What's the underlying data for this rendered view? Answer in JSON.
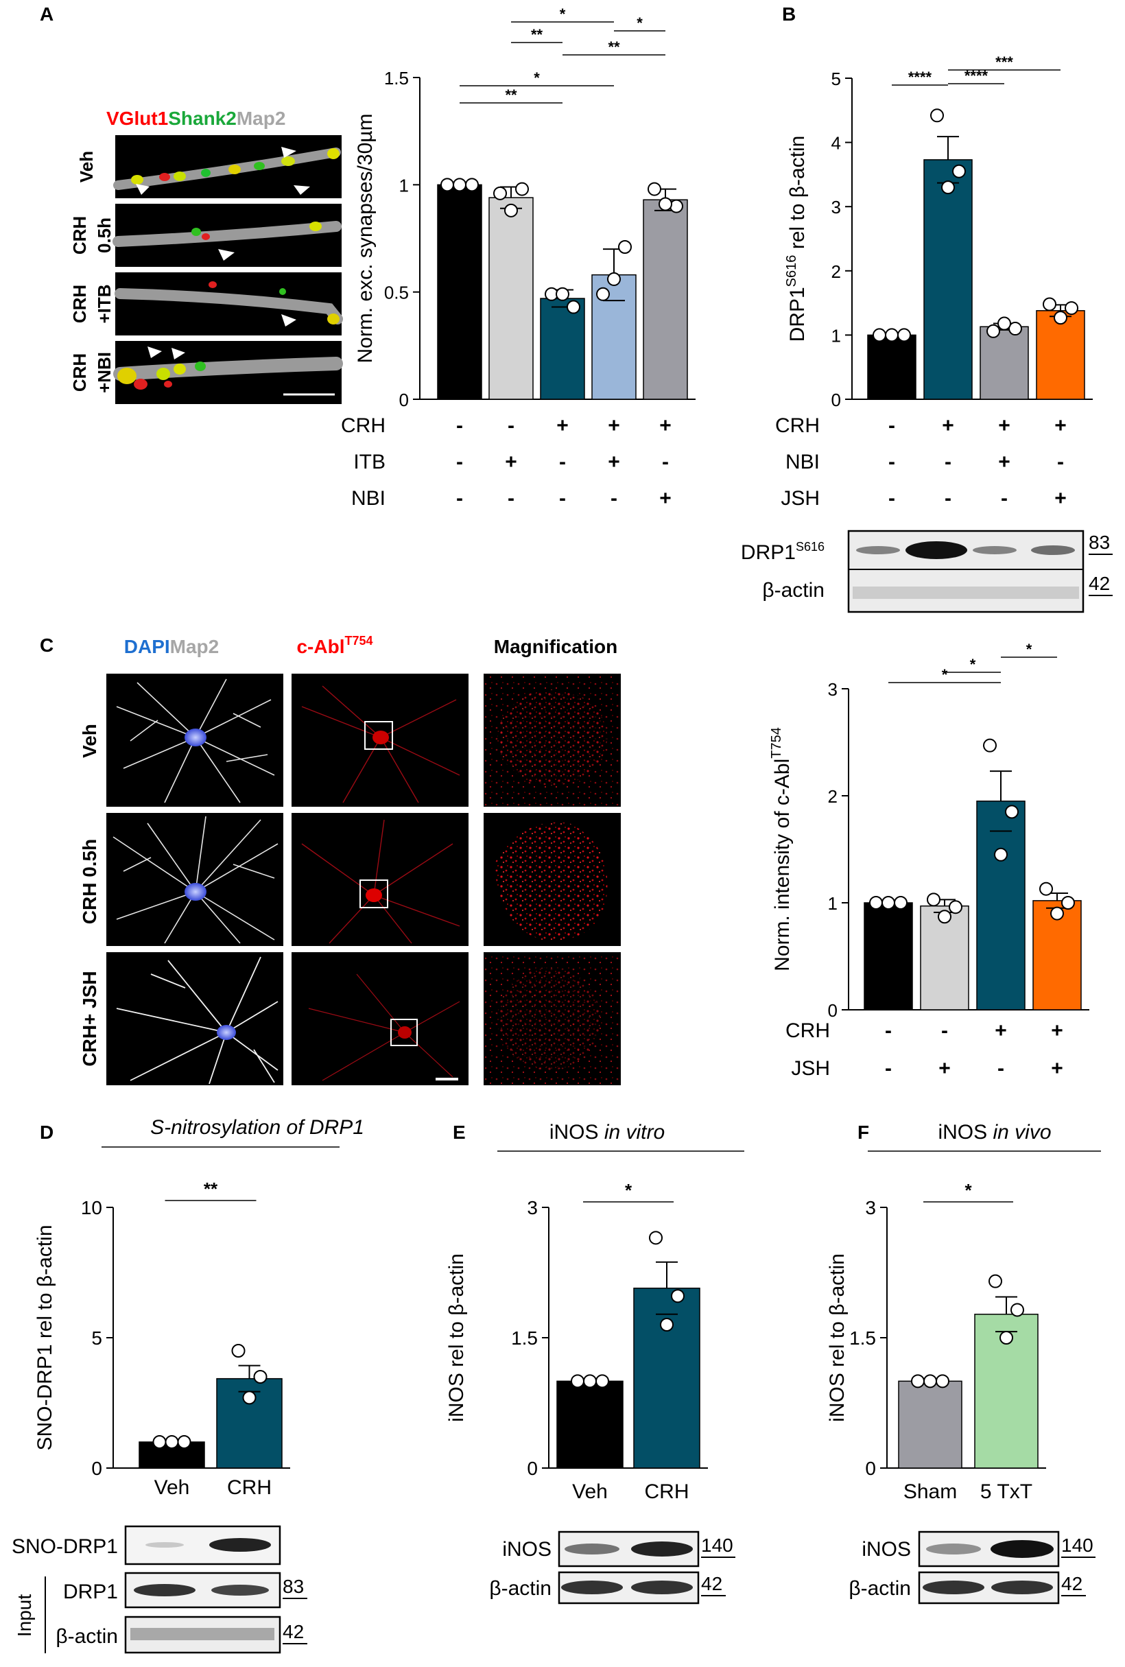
{
  "panel_labels": {
    "A": "A",
    "B": "B",
    "C": "C",
    "D": "D",
    "E": "E",
    "F": "F"
  },
  "colors": {
    "black": "#000000",
    "light_gray": "#d3d3d3",
    "teal": "#034f66",
    "light_blue": "#9ab6d9",
    "gray": "#9c9ca3",
    "orange": "#ff6a00",
    "light_green": "#a5dba5",
    "red_label": "#ff0000",
    "green_label": "#1aa83a",
    "gray_label": "#a6a6a6",
    "blue_label": "#1e6fd0"
  },
  "panelA": {
    "stain": {
      "a": "VGlut1",
      "b": "Shank2",
      "c": "Map2"
    },
    "rows": [
      "Veh",
      "CRH 0.5h",
      "CRH +ITB",
      "CRH +NBI"
    ]
  },
  "panelC": {
    "headers": {
      "dapi": "DAPI",
      "map2": "Map2",
      "cabl": "c-Abl",
      "cabl_sup": "T754",
      "mag": "Magnification"
    },
    "rows": [
      "Veh",
      "CRH 0.5h",
      "CRH+ JSH"
    ]
  },
  "panelD_title": "S-nitrosylation of DRP1",
  "panelE_title": {
    "a": "iNOS ",
    "b": "in vitro"
  },
  "panelF_title": {
    "a": "iNOS ",
    "b": "in vivo"
  },
  "blots": {
    "B": {
      "rows": [
        {
          "label": "DRP1",
          "sup": "S616",
          "mw": "83"
        },
        {
          "label": "β-actin",
          "sup": "",
          "mw": "42"
        }
      ]
    },
    "D": {
      "rows": [
        {
          "label": "SNO-DRP1",
          "mw": ""
        },
        {
          "label": "DRP1",
          "mw": "83"
        },
        {
          "label": "β-actin",
          "mw": "42"
        }
      ],
      "input_label": "Input"
    },
    "E": {
      "rows": [
        {
          "label": "iNOS",
          "mw": "140"
        },
        {
          "label": "β-actin",
          "mw": "42"
        }
      ]
    },
    "F": {
      "rows": [
        {
          "label": "iNOS",
          "mw": "140"
        },
        {
          "label": "β-actin",
          "mw": "42"
        }
      ]
    }
  },
  "chart_data": [
    {
      "id": "A",
      "type": "bar",
      "ylabel": "Norm. exc. synapses/30µm",
      "ylim": [
        0,
        1.5
      ],
      "yticks": [
        "0",
        "0.5",
        "1",
        "1.5"
      ],
      "values": [
        1.0,
        0.94,
        0.47,
        0.58,
        0.93
      ],
      "errors": [
        0.0,
        0.05,
        0.04,
        0.12,
        0.05
      ],
      "points": [
        [
          1,
          1,
          1
        ],
        [
          0.96,
          0.98,
          0.88
        ],
        [
          0.49,
          0.43,
          0.49
        ],
        [
          0.49,
          0.71,
          0.56
        ],
        [
          0.98,
          0.9,
          0.91
        ]
      ],
      "colors": [
        "#000000",
        "#d3d3d3",
        "#034f66",
        "#9ab6d9",
        "#9c9ca3"
      ],
      "conditions": [
        {
          "name": "CRH",
          "signs": [
            "-",
            "-",
            "+",
            "+",
            "+"
          ]
        },
        {
          "name": "ITB",
          "signs": [
            "-",
            "+",
            "-",
            "+",
            "-"
          ]
        },
        {
          "name": "NBI",
          "signs": [
            "-",
            "-",
            "-",
            "-",
            "+"
          ]
        }
      ],
      "sig": [
        {
          "from": 1,
          "to": 3,
          "label": "**"
        },
        {
          "from": 1,
          "to": 4,
          "label": "*"
        },
        {
          "from": 2,
          "to": 3,
          "label": "**"
        },
        {
          "from": 3,
          "to": 5,
          "label": "**"
        },
        {
          "from": 2,
          "to": 4,
          "label": "*"
        },
        {
          "from": 4,
          "to": 5,
          "label": "*"
        }
      ]
    },
    {
      "id": "B",
      "type": "bar",
      "ylabel": "DRP1",
      "ylabel_sup": "S616",
      "ylabel_rest": " rel to β-actin",
      "ylim": [
        0,
        5
      ],
      "yticks": [
        "0",
        "1",
        "2",
        "3",
        "4",
        "5"
      ],
      "values": [
        1.0,
        3.73,
        1.13,
        1.38
      ],
      "errors": [
        0.0,
        0.36,
        0.05,
        0.09
      ],
      "points": [
        [
          1,
          1,
          1
        ],
        [
          4.42,
          3.55,
          3.3
        ],
        [
          1.06,
          1.1,
          1.18
        ],
        [
          1.48,
          1.42,
          1.27
        ]
      ],
      "colors": [
        "#000000",
        "#034f66",
        "#9c9ca3",
        "#ff6a00"
      ],
      "conditions": [
        {
          "name": "CRH",
          "signs": [
            "-",
            "+",
            "+",
            "+"
          ]
        },
        {
          "name": "NBI",
          "signs": [
            "-",
            "-",
            "+",
            "-"
          ]
        },
        {
          "name": "JSH",
          "signs": [
            "-",
            "-",
            "-",
            "+"
          ]
        }
      ],
      "sig": [
        {
          "from": 1,
          "to": 2,
          "label": "****"
        },
        {
          "from": 2,
          "to": 3,
          "label": "****"
        },
        {
          "from": 2,
          "to": 4,
          "label": "***"
        }
      ]
    },
    {
      "id": "C",
      "type": "bar",
      "ylabel": "Norm. intensity of c-Abl",
      "ylabel_sup": "T754",
      "ylim": [
        0,
        3
      ],
      "yticks": [
        "0",
        "1",
        "2",
        "3"
      ],
      "values": [
        1.0,
        0.97,
        1.95,
        1.02
      ],
      "errors": [
        0.0,
        0.06,
        0.28,
        0.07
      ],
      "points": [
        [
          1,
          1,
          1
        ],
        [
          1.03,
          0.96,
          0.87
        ],
        [
          2.47,
          1.85,
          1.45
        ],
        [
          1.13,
          1.0,
          0.9
        ]
      ],
      "colors": [
        "#000000",
        "#d3d3d3",
        "#034f66",
        "#ff6a00"
      ],
      "conditions": [
        {
          "name": "CRH",
          "signs": [
            "-",
            "-",
            "+",
            "+"
          ]
        },
        {
          "name": "JSH",
          "signs": [
            "-",
            "+",
            "-",
            "+"
          ]
        }
      ],
      "sig": [
        {
          "from": 1,
          "to": 3,
          "label": "*"
        },
        {
          "from": 2,
          "to": 3,
          "label": "*"
        },
        {
          "from": 3,
          "to": 4,
          "label": "*"
        }
      ]
    },
    {
      "id": "D",
      "type": "bar",
      "ylabel": "SNO-DRP1 rel to β-actin",
      "ylim": [
        0,
        10
      ],
      "yticks": [
        "0",
        "5",
        "10"
      ],
      "categories": [
        "Veh",
        "CRH"
      ],
      "values": [
        1.0,
        3.43
      ],
      "errors": [
        0.0,
        0.5
      ],
      "points": [
        [
          1,
          1,
          1
        ],
        [
          4.5,
          3.5,
          2.7
        ]
      ],
      "colors": [
        "#000000",
        "#034f66"
      ],
      "sig": [
        {
          "from": 1,
          "to": 2,
          "label": "**"
        }
      ]
    },
    {
      "id": "E",
      "type": "bar",
      "ylabel": "iNOS rel to β-actin",
      "ylim": [
        0,
        3
      ],
      "yticks": [
        "0",
        "1.5",
        "3"
      ],
      "categories": [
        "Veh",
        "CRH"
      ],
      "values": [
        1.0,
        2.07
      ],
      "errors": [
        0.0,
        0.3
      ],
      "points": [
        [
          1,
          1,
          1
        ],
        [
          2.65,
          1.98,
          1.65
        ]
      ],
      "colors": [
        "#000000",
        "#034f66"
      ],
      "sig": [
        {
          "from": 1,
          "to": 2,
          "label": "*"
        }
      ]
    },
    {
      "id": "F",
      "type": "bar",
      "ylabel": "iNOS rel to β-actin",
      "ylim": [
        0,
        3
      ],
      "yticks": [
        "0",
        "1.5",
        "3"
      ],
      "categories": [
        "Sham",
        "5 TxT"
      ],
      "values": [
        1.0,
        1.77
      ],
      "errors": [
        0.0,
        0.2
      ],
      "points": [
        [
          1,
          1,
          1
        ],
        [
          2.15,
          1.82,
          1.5
        ]
      ],
      "colors": [
        "#9c9ca3",
        "#a5dba5"
      ],
      "sig": [
        {
          "from": 1,
          "to": 2,
          "label": "*"
        }
      ]
    }
  ]
}
